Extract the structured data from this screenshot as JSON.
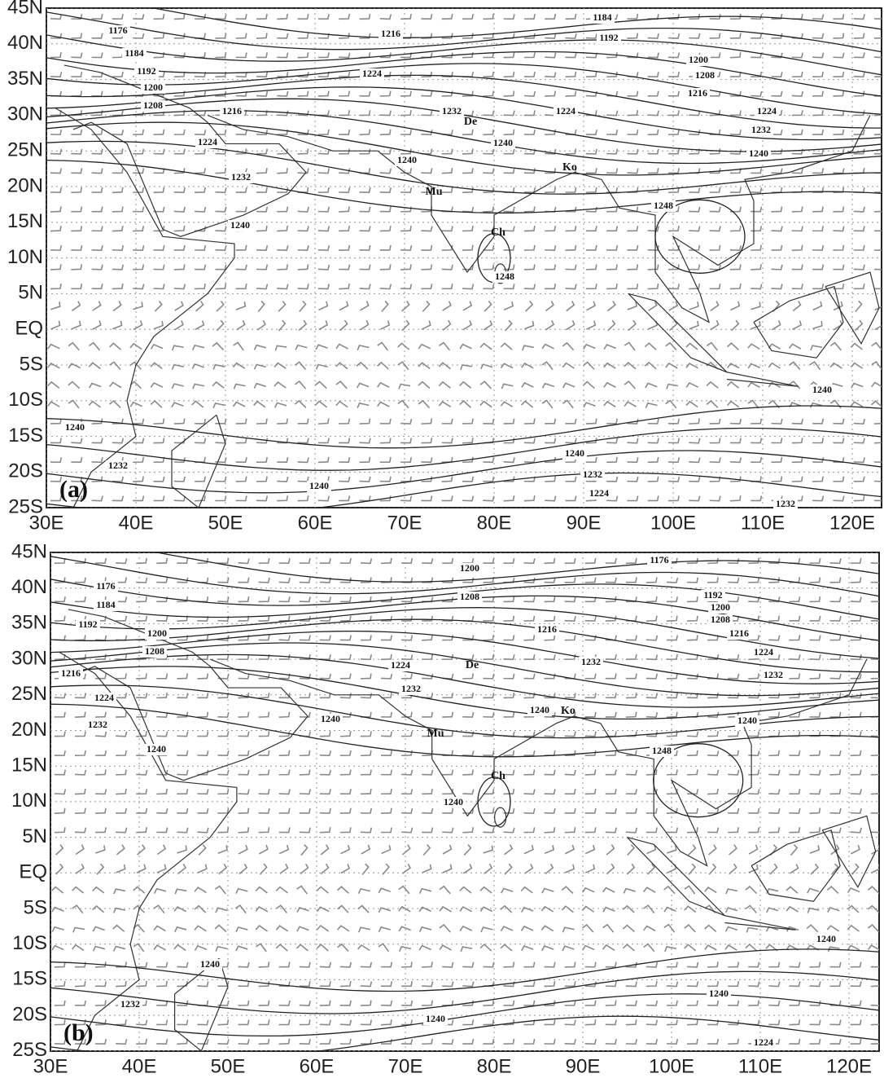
{
  "x_labels": [
    "30E",
    "40E",
    "50E",
    "60E",
    "70E",
    "80E",
    "90E",
    "100E",
    "110E",
    "120E"
  ],
  "y_labels": [
    "45N",
    "40N",
    "35N",
    "30N",
    "25N",
    "20N",
    "15N",
    "10N",
    "5N",
    "EQ",
    "5S",
    "10S",
    "15S",
    "20S",
    "25S"
  ],
  "panels": [
    {
      "label": "(a)",
      "contour_labels": [
        "1184",
        "1192",
        "1176",
        "1216",
        "1184",
        "1192",
        "1200",
        "1200",
        "1208",
        "1224",
        "1216",
        "1208",
        "1216",
        "1232",
        "1224",
        "1224",
        "1232",
        "1224",
        "1240",
        "1240",
        "1240",
        "1232",
        "1248",
        "1240",
        "1248",
        "1240",
        "1240",
        "1240",
        "1232",
        "1232",
        "1240",
        "1224",
        "1232"
      ],
      "cities": [
        "De",
        "Mu",
        "Ch",
        "Ko"
      ]
    },
    {
      "label": "(b)",
      "contour_labels": [
        "1176",
        "1200",
        "1176",
        "1208",
        "1192",
        "1184",
        "1200",
        "1192",
        "1208",
        "1200",
        "1216",
        "1216",
        "1208",
        "1224",
        "1224",
        "1232",
        "1216",
        "1232",
        "1232",
        "1224",
        "1240",
        "1240",
        "1240",
        "1232",
        "1240",
        "1248",
        "1240",
        "1240",
        "1240",
        "1240",
        "1232",
        "1240",
        "1224"
      ],
      "cities": [
        "De",
        "Ko",
        "Mu",
        "Ch"
      ]
    }
  ]
}
